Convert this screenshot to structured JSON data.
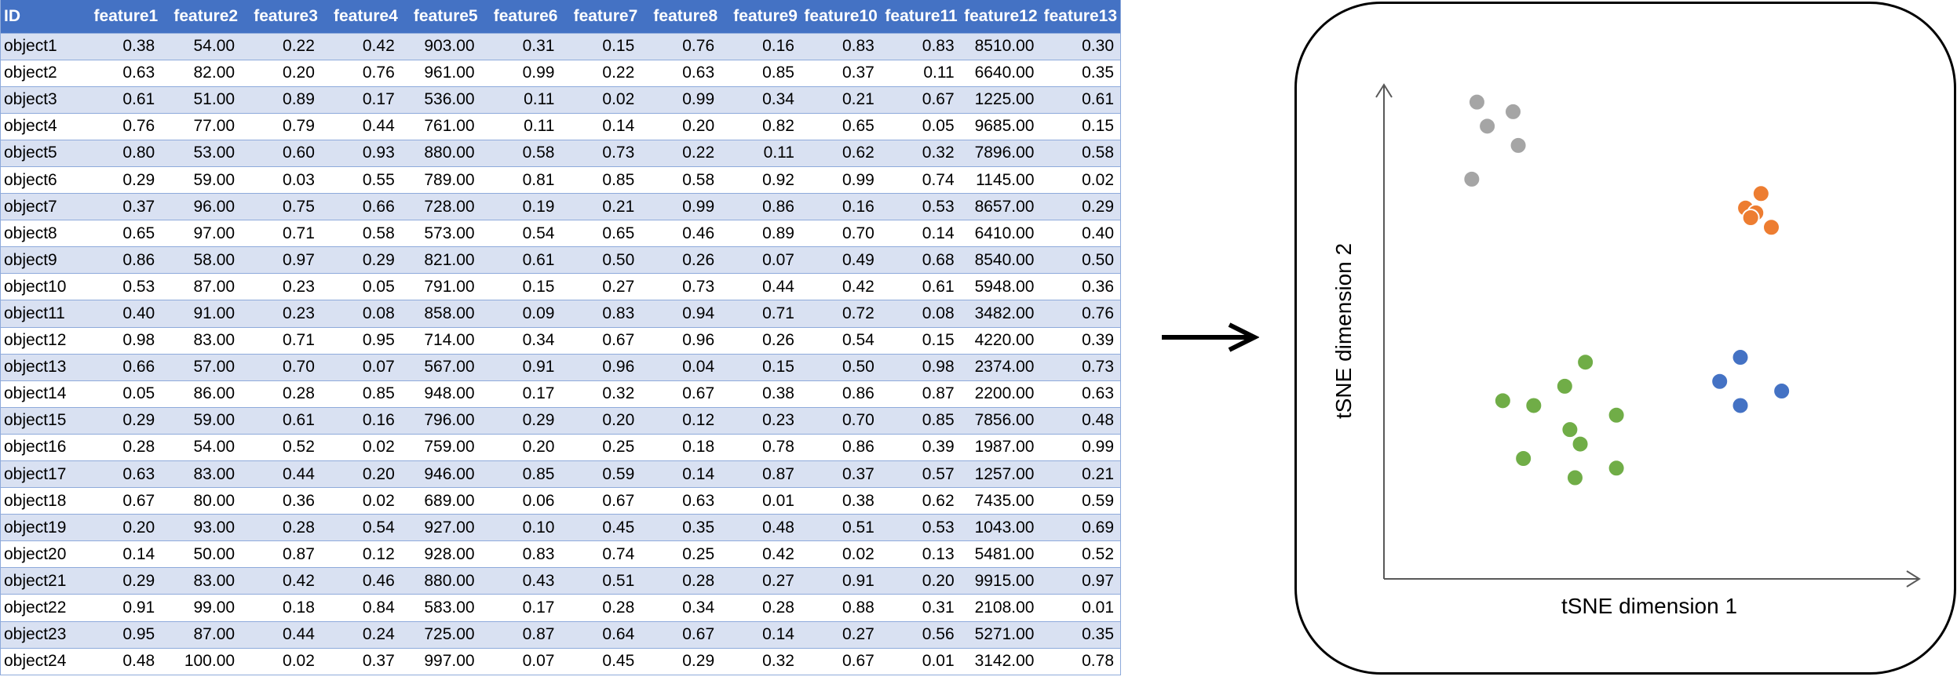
{
  "table": {
    "headers": [
      "ID",
      "feature1",
      "feature2",
      "feature3",
      "feature4",
      "feature5",
      "feature6",
      "feature7",
      "feature8",
      "feature9",
      "feature10",
      "feature11",
      "feature12",
      "feature13"
    ],
    "rows": [
      [
        "object1",
        "0.38",
        "54.00",
        "0.22",
        "0.42",
        "903.00",
        "0.31",
        "0.15",
        "0.76",
        "0.16",
        "0.83",
        "0.83",
        "8510.00",
        "0.30"
      ],
      [
        "object2",
        "0.63",
        "82.00",
        "0.20",
        "0.76",
        "961.00",
        "0.99",
        "0.22",
        "0.63",
        "0.85",
        "0.37",
        "0.11",
        "6640.00",
        "0.35"
      ],
      [
        "object3",
        "0.61",
        "51.00",
        "0.89",
        "0.17",
        "536.00",
        "0.11",
        "0.02",
        "0.99",
        "0.34",
        "0.21",
        "0.67",
        "1225.00",
        "0.61"
      ],
      [
        "object4",
        "0.76",
        "77.00",
        "0.79",
        "0.44",
        "761.00",
        "0.11",
        "0.14",
        "0.20",
        "0.82",
        "0.65",
        "0.05",
        "9685.00",
        "0.15"
      ],
      [
        "object5",
        "0.80",
        "53.00",
        "0.60",
        "0.93",
        "880.00",
        "0.58",
        "0.73",
        "0.22",
        "0.11",
        "0.62",
        "0.32",
        "7896.00",
        "0.58"
      ],
      [
        "object6",
        "0.29",
        "59.00",
        "0.03",
        "0.55",
        "789.00",
        "0.81",
        "0.85",
        "0.58",
        "0.92",
        "0.99",
        "0.74",
        "1145.00",
        "0.02"
      ],
      [
        "object7",
        "0.37",
        "96.00",
        "0.75",
        "0.66",
        "728.00",
        "0.19",
        "0.21",
        "0.99",
        "0.86",
        "0.16",
        "0.53",
        "8657.00",
        "0.29"
      ],
      [
        "object8",
        "0.65",
        "97.00",
        "0.71",
        "0.58",
        "573.00",
        "0.54",
        "0.65",
        "0.46",
        "0.89",
        "0.70",
        "0.14",
        "6410.00",
        "0.40"
      ],
      [
        "object9",
        "0.86",
        "58.00",
        "0.97",
        "0.29",
        "821.00",
        "0.61",
        "0.50",
        "0.26",
        "0.07",
        "0.49",
        "0.68",
        "8540.00",
        "0.50"
      ],
      [
        "object10",
        "0.53",
        "87.00",
        "0.23",
        "0.05",
        "791.00",
        "0.15",
        "0.27",
        "0.73",
        "0.44",
        "0.42",
        "0.61",
        "5948.00",
        "0.36"
      ],
      [
        "object11",
        "0.40",
        "91.00",
        "0.23",
        "0.08",
        "858.00",
        "0.09",
        "0.83",
        "0.94",
        "0.71",
        "0.72",
        "0.08",
        "3482.00",
        "0.76"
      ],
      [
        "object12",
        "0.98",
        "83.00",
        "0.71",
        "0.95",
        "714.00",
        "0.34",
        "0.67",
        "0.96",
        "0.26",
        "0.54",
        "0.15",
        "4220.00",
        "0.39"
      ],
      [
        "object13",
        "0.66",
        "57.00",
        "0.70",
        "0.07",
        "567.00",
        "0.91",
        "0.96",
        "0.04",
        "0.15",
        "0.50",
        "0.98",
        "2374.00",
        "0.73"
      ],
      [
        "object14",
        "0.05",
        "86.00",
        "0.28",
        "0.85",
        "948.00",
        "0.17",
        "0.32",
        "0.67",
        "0.38",
        "0.86",
        "0.87",
        "2200.00",
        "0.63"
      ],
      [
        "object15",
        "0.29",
        "59.00",
        "0.61",
        "0.16",
        "796.00",
        "0.29",
        "0.20",
        "0.12",
        "0.23",
        "0.70",
        "0.85",
        "7856.00",
        "0.48"
      ],
      [
        "object16",
        "0.28",
        "54.00",
        "0.52",
        "0.02",
        "759.00",
        "0.20",
        "0.25",
        "0.18",
        "0.78",
        "0.86",
        "0.39",
        "1987.00",
        "0.99"
      ],
      [
        "object17",
        "0.63",
        "83.00",
        "0.44",
        "0.20",
        "946.00",
        "0.85",
        "0.59",
        "0.14",
        "0.87",
        "0.37",
        "0.57",
        "1257.00",
        "0.21"
      ],
      [
        "object18",
        "0.67",
        "80.00",
        "0.36",
        "0.02",
        "689.00",
        "0.06",
        "0.67",
        "0.63",
        "0.01",
        "0.38",
        "0.62",
        "7435.00",
        "0.59"
      ],
      [
        "object19",
        "0.20",
        "93.00",
        "0.28",
        "0.54",
        "927.00",
        "0.10",
        "0.45",
        "0.35",
        "0.48",
        "0.51",
        "0.53",
        "1043.00",
        "0.69"
      ],
      [
        "object20",
        "0.14",
        "50.00",
        "0.87",
        "0.12",
        "928.00",
        "0.83",
        "0.74",
        "0.25",
        "0.42",
        "0.02",
        "0.13",
        "5481.00",
        "0.52"
      ],
      [
        "object21",
        "0.29",
        "83.00",
        "0.42",
        "0.46",
        "880.00",
        "0.43",
        "0.51",
        "0.28",
        "0.27",
        "0.91",
        "0.20",
        "9915.00",
        "0.97"
      ],
      [
        "object22",
        "0.91",
        "99.00",
        "0.18",
        "0.84",
        "583.00",
        "0.17",
        "0.28",
        "0.34",
        "0.28",
        "0.88",
        "0.31",
        "2108.00",
        "0.01"
      ],
      [
        "object23",
        "0.95",
        "87.00",
        "0.44",
        "0.24",
        "725.00",
        "0.87",
        "0.64",
        "0.67",
        "0.14",
        "0.27",
        "0.56",
        "5271.00",
        "0.35"
      ],
      [
        "object24",
        "0.48",
        "100.00",
        "0.02",
        "0.37",
        "997.00",
        "0.07",
        "0.45",
        "0.29",
        "0.32",
        "0.67",
        "0.01",
        "3142.00",
        "0.78"
      ]
    ]
  },
  "colors": {
    "header_bg": "#4472c4",
    "band_light": "#d9e1f2",
    "gray_cluster": "#a5a5a5",
    "orange_cluster": "#ed7d31",
    "green_cluster": "#70ad47",
    "blue_cluster": "#4472c4"
  },
  "chart_data": {
    "type": "scatter",
    "xlabel": "tSNE dimension 1",
    "ylabel": "tSNE dimension 2",
    "xlim": [
      0,
      100
    ],
    "ylim": [
      0,
      100
    ],
    "grid": false,
    "series": [
      {
        "color": "#a5a5a5",
        "points": [
          [
            18,
            99
          ],
          [
            25,
            97
          ],
          [
            20,
            94
          ],
          [
            26,
            90
          ],
          [
            17,
            83
          ]
        ]
      },
      {
        "color": "#ed7d31",
        "points": [
          [
            73,
            80
          ],
          [
            70,
            77
          ],
          [
            72,
            76
          ],
          [
            71,
            75
          ],
          [
            75,
            73
          ]
        ]
      },
      {
        "color": "#70ad47",
        "points": [
          [
            39,
            45
          ],
          [
            35,
            40
          ],
          [
            23,
            37
          ],
          [
            29,
            36
          ],
          [
            45,
            34
          ],
          [
            36,
            31
          ],
          [
            38,
            28
          ],
          [
            27,
            25
          ],
          [
            45,
            23
          ],
          [
            37,
            21
          ]
        ]
      },
      {
        "color": "#4472c4",
        "points": [
          [
            69,
            46
          ],
          [
            65,
            41
          ],
          [
            77,
            39
          ],
          [
            69,
            36
          ]
        ]
      }
    ]
  }
}
